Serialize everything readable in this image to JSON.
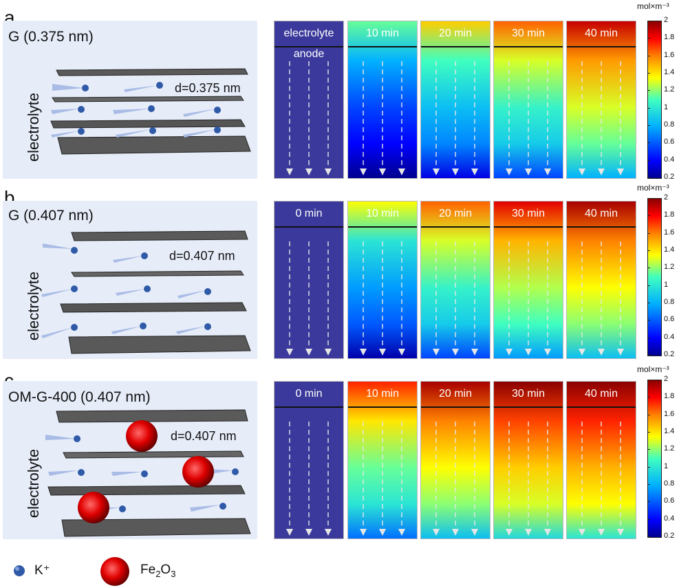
{
  "panels": {
    "a": {
      "letter": "a",
      "title": "G (0.375 nm)",
      "side_label": "electrolyte",
      "distance_label": "d=0.375 nm",
      "frames": [
        {
          "label": "electrolyte",
          "sub_label": "anode",
          "concentration": 0.25
        },
        {
          "label": "10 min",
          "concentration": 0.55
        },
        {
          "label": "20 min",
          "concentration": 0.85
        },
        {
          "label": "30 min",
          "concentration": 1.05
        },
        {
          "label": "40 min",
          "concentration": 1.3
        }
      ]
    },
    "b": {
      "letter": "b",
      "title": "G (0.407 nm)",
      "side_label": "electrolyte",
      "distance_label": "d=0.407 nm",
      "frames": [
        {
          "label": "0 min",
          "concentration": 0.25
        },
        {
          "label": "10 min",
          "concentration": 0.75
        },
        {
          "label": "20 min",
          "concentration": 1.05
        },
        {
          "label": "30 min",
          "concentration": 1.25
        },
        {
          "label": "40 min",
          "concentration": 1.35
        }
      ]
    },
    "c": {
      "letter": "c",
      "title": "OM-G-400 (0.407 nm)",
      "side_label": "electrolyte",
      "distance_label": "d=0.407 nm",
      "frames": [
        {
          "label": "0 min",
          "concentration": 0.25
        },
        {
          "label": "10 min",
          "concentration": 1.15
        },
        {
          "label": "20 min",
          "concentration": 1.35
        },
        {
          "label": "30 min",
          "concentration": 1.45
        },
        {
          "label": "40 min",
          "concentration": 1.5
        }
      ]
    }
  },
  "colorbar": {
    "unit": "mol×m⁻³",
    "ticks": [
      "2",
      "1.8",
      "1.6",
      "1.4",
      "1.2",
      "1",
      "0.8",
      "0.6",
      "0.4",
      "0.2"
    ],
    "min": 0.2,
    "max": 2
  },
  "legend": {
    "k_label": "K⁺",
    "fe_label_main": "Fe",
    "fe_sub1": "2",
    "fe_mid": "O",
    "fe_sub2": "3"
  },
  "colors": {
    "panel_bg": "#e6ecf8",
    "graphene": "#4a4a4a",
    "k_ion": "#2f5aa8",
    "fe2o3": "#e00000",
    "deep_blue": "#3b3a9c"
  }
}
